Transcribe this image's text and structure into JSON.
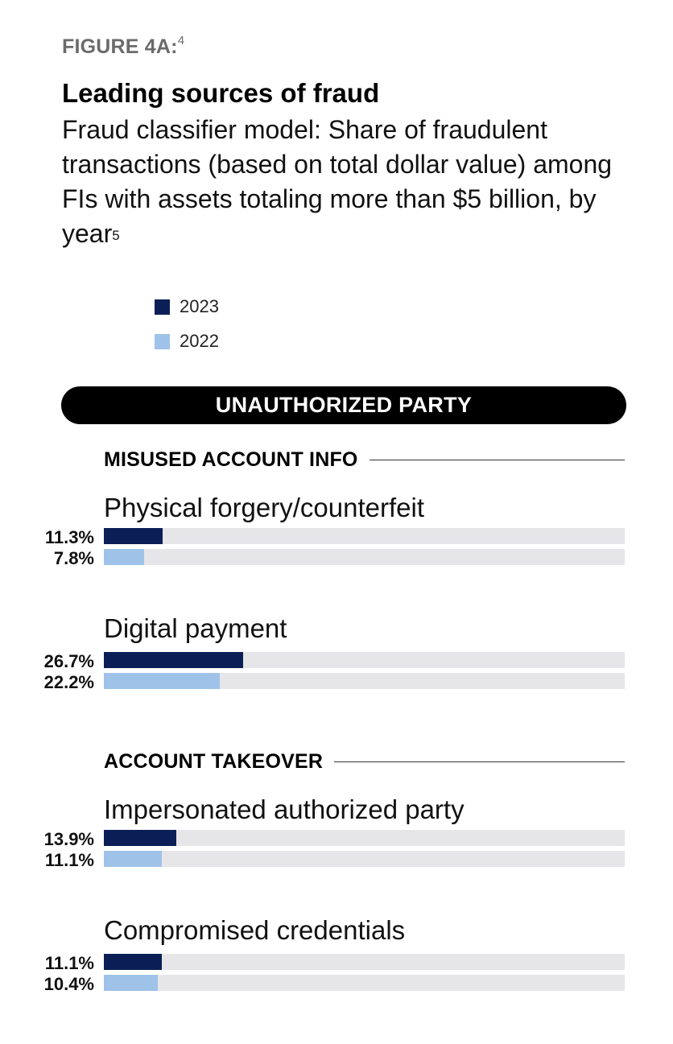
{
  "figure_label": "FIGURE 4A:",
  "figure_note": "4",
  "title": "Leading sources of fraud",
  "subtitle": "Fraud classifier model: Share of fraudulent transactions (based on total dollar value) among FIs with assets totaling more than $5 billion, by year",
  "subtitle_note": "5",
  "banner": "UNAUTHORIZED PARTY",
  "colors": {
    "y2023": "#0b1f56",
    "y2022": "#9fc2e8",
    "track": "#e6e6e9"
  },
  "chart_data": {
    "type": "bar",
    "orientation": "horizontal",
    "legend": [
      "2023",
      "2022"
    ],
    "legend_placement": "top-left",
    "xlim": [
      0,
      100
    ],
    "unit": "%",
    "sections": [
      {
        "name": "MISUSED ACCOUNT INFO",
        "categories": [
          {
            "name": "Physical forgery/counterfeit",
            "values": {
              "2023": 11.3,
              "2022": 7.8
            },
            "labels": [
              "11.3%",
              "7.8%"
            ]
          },
          {
            "name": "Digital payment",
            "values": {
              "2023": 26.7,
              "2022": 22.2
            },
            "labels": [
              "26.7%",
              "22.2%"
            ]
          }
        ]
      },
      {
        "name": "ACCOUNT TAKEOVER",
        "categories": [
          {
            "name": "Impersonated authorized party",
            "values": {
              "2023": 13.9,
              "2022": 11.1
            },
            "labels": [
              "13.9%",
              "11.1%"
            ]
          },
          {
            "name": "Compromised credentials",
            "values": {
              "2023": 11.1,
              "2022": 10.4
            },
            "labels": [
              "11.1%",
              "10.4%"
            ]
          }
        ]
      }
    ]
  }
}
